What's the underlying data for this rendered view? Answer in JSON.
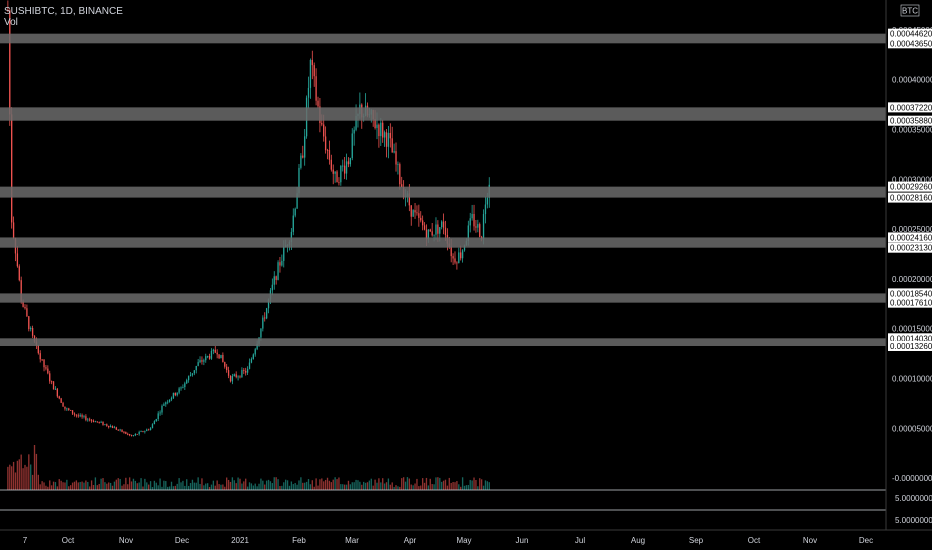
{
  "header": {
    "symbol_line": "SUSHIBTC, 1D, BINANCE",
    "volume_label": "Vol"
  },
  "currency_badge": "BTC",
  "colors": {
    "background": "#000000",
    "up": "#26a69a",
    "down": "#ef5350",
    "zone": "#6b6b6b",
    "axis_text": "#d1d4dc"
  },
  "chart_data": {
    "type": "candlestick",
    "symbol": "SUSHIBTC",
    "interval": "1D",
    "exchange": "BINANCE",
    "ylim": [
      -1.2e-05,
      0.00048
    ],
    "price_axis_ticks": [
      "0.00045000",
      "0.00040000",
      "0.00035000",
      "0.00030000",
      "0.00025000",
      "0.00020000",
      "0.00015000",
      "0.00010000",
      "0.00005000",
      "-0.00000000"
    ],
    "volume_axis_ticks": [
      "5.00000000",
      "5.00000000"
    ],
    "time_ticks": [
      "7",
      "Oct",
      "Nov",
      "Dec",
      "2021",
      "Feb",
      "Mar",
      "Apr",
      "May",
      "Jun",
      "Jul",
      "Aug",
      "Sep",
      "Oct",
      "Nov",
      "Dec"
    ],
    "horizontal_zones": [
      {
        "top": "0.00044620",
        "bottom": "0.00043650"
      },
      {
        "top": "0.00037220",
        "bottom": "0.00035880"
      },
      {
        "top": "0.00029260",
        "bottom": "0.00028160"
      },
      {
        "top": "0.00024160",
        "bottom": "0.00023130"
      },
      {
        "top": "0.00018540",
        "bottom": "0.00017610"
      },
      {
        "top": "0.00014030",
        "bottom": "0.00013260"
      }
    ],
    "price_path": [
      [
        "2020-09-01",
        0.00047
      ],
      [
        "2020-09-03",
        0.00026
      ],
      [
        "2020-09-05",
        0.00023
      ],
      [
        "2020-09-08",
        0.00018
      ],
      [
        "2020-09-11",
        0.00016
      ],
      [
        "2020-09-14",
        0.00014
      ],
      [
        "2020-09-18",
        0.00012
      ],
      [
        "2020-09-24",
        9.5e-05
      ],
      [
        "2020-10-01",
        7e-05
      ],
      [
        "2020-10-08",
        6.2e-05
      ],
      [
        "2020-10-15",
        5.8e-05
      ],
      [
        "2020-10-25",
        5.2e-05
      ],
      [
        "2020-11-05",
        4.2e-05
      ],
      [
        "2020-11-15",
        5e-05
      ],
      [
        "2020-11-22",
        7.5e-05
      ],
      [
        "2020-12-01",
        9e-05
      ],
      [
        "2020-12-10",
        0.000115
      ],
      [
        "2020-12-20",
        0.000128
      ],
      [
        "2020-12-27",
        0.0001
      ],
      [
        "2021-01-05",
        0.000108
      ],
      [
        "2021-01-12",
        0.00015
      ],
      [
        "2021-01-20",
        0.000205
      ],
      [
        "2021-01-28",
        0.00025
      ],
      [
        "2021-02-03",
        0.00033
      ],
      [
        "2021-02-07",
        0.000415
      ],
      [
        "2021-02-13",
        0.00035
      ],
      [
        "2021-02-20",
        0.0003
      ],
      [
        "2021-02-27",
        0.00032
      ],
      [
        "2021-03-05",
        0.00037
      ],
      [
        "2021-03-14",
        0.000355
      ],
      [
        "2021-03-20",
        0.00034
      ],
      [
        "2021-03-26",
        0.0003
      ],
      [
        "2021-04-02",
        0.000265
      ],
      [
        "2021-04-10",
        0.000245
      ],
      [
        "2021-04-18",
        0.000255
      ],
      [
        "2021-04-23",
        0.00022
      ],
      [
        "2021-04-27",
        0.000225
      ],
      [
        "2021-05-03",
        0.00026
      ],
      [
        "2021-05-08",
        0.000245
      ],
      [
        "2021-05-10",
        0.00028
      ],
      [
        "2021-05-12",
        0.0003
      ]
    ]
  }
}
